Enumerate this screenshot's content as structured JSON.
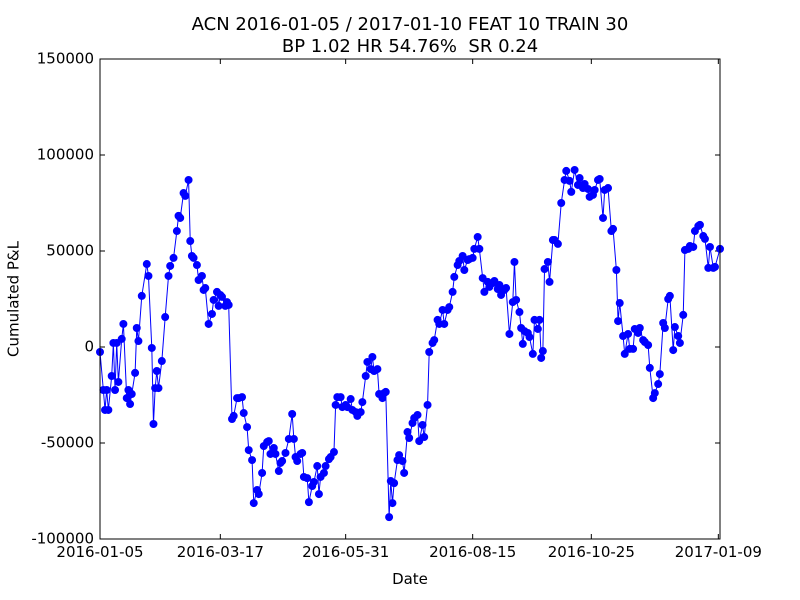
{
  "chart_data": {
    "type": "line",
    "title": [
      "ACN 2016-01-05 / 2017-01-10 FEAT 10 TRAIN 30",
      "BP 1.02 HR 54.76%  SR 0.24"
    ],
    "xlabel": "Date",
    "ylabel": "Cumulated P&L",
    "color": "#0000ff",
    "xlim": [
      "2016-01-05",
      "2017-01-10"
    ],
    "xticks": [
      "2016-01-05",
      "2016-03-17",
      "2016-05-31",
      "2016-08-15",
      "2016-10-25",
      "2017-01-09"
    ],
    "ylim": [
      -100000,
      150000
    ],
    "yticks": [
      -100000,
      -50000,
      0,
      50000,
      100000,
      150000
    ],
    "x": [
      "2016-01-05",
      "2016-01-07",
      "2016-01-08",
      "2016-01-09",
      "2016-01-10",
      "2016-01-12",
      "2016-01-13",
      "2016-01-14",
      "2016-01-15",
      "2016-01-16",
      "2016-01-18",
      "2016-01-19",
      "2016-01-21",
      "2016-01-22",
      "2016-01-23",
      "2016-01-24",
      "2016-01-26",
      "2016-01-27",
      "2016-01-28",
      "2016-01-30",
      "2016-02-02",
      "2016-02-03",
      "2016-02-05",
      "2016-02-06",
      "2016-02-07",
      "2016-02-08",
      "2016-02-09",
      "2016-02-11",
      "2016-02-13",
      "2016-02-15",
      "2016-02-16",
      "2016-02-18",
      "2016-02-20",
      "2016-02-21",
      "2016-02-22",
      "2016-02-24",
      "2016-02-25",
      "2016-02-27",
      "2016-02-28",
      "2016-02-29",
      "2016-03-01",
      "2016-03-03",
      "2016-03-04",
      "2016-03-06",
      "2016-03-07",
      "2016-03-08",
      "2016-03-10",
      "2016-03-12",
      "2016-03-13",
      "2016-03-15",
      "2016-03-16",
      "2016-03-17",
      "2016-03-18",
      "2016-03-20",
      "2016-03-21",
      "2016-03-22",
      "2016-03-24",
      "2016-03-25",
      "2016-03-27",
      "2016-03-28",
      "2016-03-30",
      "2016-03-31",
      "2016-04-02",
      "2016-04-03",
      "2016-04-05",
      "2016-04-06",
      "2016-04-08",
      "2016-04-09",
      "2016-04-11",
      "2016-04-12",
      "2016-04-14",
      "2016-04-15",
      "2016-04-16",
      "2016-04-18",
      "2016-04-19",
      "2016-04-21",
      "2016-04-22",
      "2016-04-23",
      "2016-04-25",
      "2016-04-27",
      "2016-04-29",
      "2016-04-30",
      "2016-05-01",
      "2016-05-02",
      "2016-05-04",
      "2016-05-05",
      "2016-05-06",
      "2016-05-08",
      "2016-05-09",
      "2016-05-11",
      "2016-05-12",
      "2016-05-14",
      "2016-05-15",
      "2016-05-16",
      "2016-05-18",
      "2016-05-19",
      "2016-05-21",
      "2016-05-22",
      "2016-05-24",
      "2016-05-25",
      "2016-05-26",
      "2016-05-28",
      "2016-05-29",
      "2016-05-31",
      "2016-06-01",
      "2016-06-03",
      "2016-06-04",
      "2016-06-06",
      "2016-06-07",
      "2016-06-09",
      "2016-06-10",
      "2016-06-12",
      "2016-06-13",
      "2016-06-15",
      "2016-06-16",
      "2016-06-17",
      "2016-06-19",
      "2016-06-20",
      "2016-06-22",
      "2016-06-23",
      "2016-06-24",
      "2016-06-26",
      "2016-06-27",
      "2016-06-28",
      "2016-06-29",
      "2016-07-01",
      "2016-07-02",
      "2016-07-04",
      "2016-07-05",
      "2016-07-07",
      "2016-07-08",
      "2016-07-10",
      "2016-07-11",
      "2016-07-13",
      "2016-07-14",
      "2016-07-16",
      "2016-07-17",
      "2016-07-19",
      "2016-07-20",
      "2016-07-22",
      "2016-07-23",
      "2016-07-25",
      "2016-07-26",
      "2016-07-28",
      "2016-07-29",
      "2016-07-31",
      "2016-08-01",
      "2016-08-03",
      "2016-08-04",
      "2016-08-06",
      "2016-08-07",
      "2016-08-09",
      "2016-08-10",
      "2016-08-12",
      "2016-08-13",
      "2016-08-15",
      "2016-08-16",
      "2016-08-18",
      "2016-08-19",
      "2016-08-21",
      "2016-08-22",
      "2016-08-24",
      "2016-08-25",
      "2016-08-27",
      "2016-08-28",
      "2016-08-30",
      "2016-08-31",
      "2016-09-01",
      "2016-09-03",
      "2016-09-04",
      "2016-09-06",
      "2016-09-08",
      "2016-09-09",
      "2016-09-10",
      "2016-09-12",
      "2016-09-13",
      "2016-09-14",
      "2016-09-15",
      "2016-09-17",
      "2016-09-18",
      "2016-09-20",
      "2016-09-21",
      "2016-09-23",
      "2016-09-24",
      "2016-09-25",
      "2016-09-26",
      "2016-09-27",
      "2016-09-29",
      "2016-09-30",
      "2016-10-02",
      "2016-10-03",
      "2016-10-05",
      "2016-10-07",
      "2016-10-09",
      "2016-10-10",
      "2016-10-12",
      "2016-10-13",
      "2016-10-15",
      "2016-10-17",
      "2016-10-18",
      "2016-10-20",
      "2016-10-21",
      "2016-10-23",
      "2016-10-24",
      "2016-10-26",
      "2016-10-27",
      "2016-10-29",
      "2016-10-30",
      "2016-11-01",
      "2016-11-02",
      "2016-11-04",
      "2016-11-06",
      "2016-11-07",
      "2016-11-09",
      "2016-11-10",
      "2016-11-11",
      "2016-11-13",
      "2016-11-14",
      "2016-11-16",
      "2016-11-17",
      "2016-11-19",
      "2016-11-20",
      "2016-11-22",
      "2016-11-23",
      "2016-11-25",
      "2016-11-26",
      "2016-11-28",
      "2016-11-29",
      "2016-12-01",
      "2016-12-02",
      "2016-12-04",
      "2016-12-05",
      "2016-12-07",
      "2016-12-08",
      "2016-12-10",
      "2016-12-11",
      "2016-12-13",
      "2016-12-14",
      "2016-12-16",
      "2016-12-17",
      "2016-12-19",
      "2016-12-20",
      "2016-12-22",
      "2016-12-23",
      "2016-12-25",
      "2016-12-26",
      "2016-12-28",
      "2016-12-29",
      "2016-12-31",
      "2017-01-01",
      "2017-01-03",
      "2017-01-04",
      "2017-01-06",
      "2017-01-07",
      "2017-01-10"
    ],
    "values": [
      -2600,
      -22400,
      -32800,
      -22400,
      -32800,
      -15100,
      2100,
      -22400,
      2100,
      -18200,
      4200,
      12000,
      -26600,
      -22400,
      -29700,
      -24500,
      -13500,
      9900,
      3100,
      26600,
      43200,
      37000,
      -500,
      -40100,
      -21400,
      -12500,
      -21400,
      -7300,
      15600,
      37000,
      42200,
      46400,
      60400,
      68300,
      67200,
      80200,
      78700,
      87000,
      55200,
      47400,
      46400,
      42700,
      34900,
      37000,
      29700,
      30700,
      12000,
      17200,
      24500,
      28700,
      21400,
      27100,
      26100,
      21400,
      23400,
      21900,
      -37500,
      -35900,
      -26600,
      -26600,
      -26100,
      -34400,
      -41700,
      -53700,
      -58900,
      -81300,
      -74500,
      -76600,
      -65600,
      -51600,
      -49500,
      -49000,
      -55700,
      -52600,
      -55700,
      -64600,
      -60400,
      -59400,
      -55200,
      -47900,
      -34900,
      -47900,
      -57300,
      -59400,
      -55700,
      -55200,
      -67700,
      -68300,
      -80800,
      -72400,
      -70300,
      -62000,
      -76600,
      -67700,
      -65600,
      -62000,
      -58400,
      -57300,
      -54700,
      -30200,
      -26100,
      -26100,
      -31300,
      -30200,
      -31300,
      -27100,
      -32800,
      -33900,
      -35900,
      -33900,
      -28700,
      -15100,
      -7800,
      -11500,
      -5200,
      -12500,
      -11500,
      -24500,
      -26600,
      -24000,
      -23400,
      -88600,
      -69800,
      -81300,
      -70900,
      -58900,
      -56300,
      -59400,
      -65600,
      -44300,
      -47400,
      -39600,
      -37000,
      -35400,
      -49000,
      -40600,
      -46900,
      -30200,
      -2600,
      2100,
      3600,
      14100,
      12000,
      19300,
      12000,
      19300,
      20800,
      28700,
      36500,
      42700,
      44800,
      47400,
      40100,
      45300,
      45800,
      46400,
      51100,
      57300,
      51100,
      35900,
      28700,
      33900,
      31300,
      33300,
      34400,
      30200,
      32300,
      27100,
      29700,
      30700,
      6800,
      23400,
      44300,
      24500,
      18200,
      9900,
      1600,
      8300,
      7300,
      5200,
      -3600,
      14100,
      9400,
      14100,
      -5700,
      -2100,
      40600,
      44300,
      33900,
      55700,
      55700,
      53700,
      75000,
      87000,
      91700,
      86500,
      80800,
      92200,
      84400,
      88000,
      82800,
      84900,
      82300,
      78200,
      79200,
      81800,
      87000,
      87500,
      67200,
      81800,
      82800,
      60400,
      61500,
      40100,
      13500,
      22900,
      5700,
      -3600,
      6800,
      -1000,
      -1000,
      9400,
      7300,
      9900,
      3600,
      2600,
      1000,
      -10900,
      -26600,
      -24000,
      -19300,
      -14100,
      12500,
      9900,
      25000,
      26600,
      -1600,
      10400,
      5700,
      2100,
      16700,
      50500,
      51100,
      52600,
      52100,
      60400,
      63000,
      63600,
      57800,
      56300,
      41200,
      52100,
      41200,
      41700,
      51100
    ]
  }
}
